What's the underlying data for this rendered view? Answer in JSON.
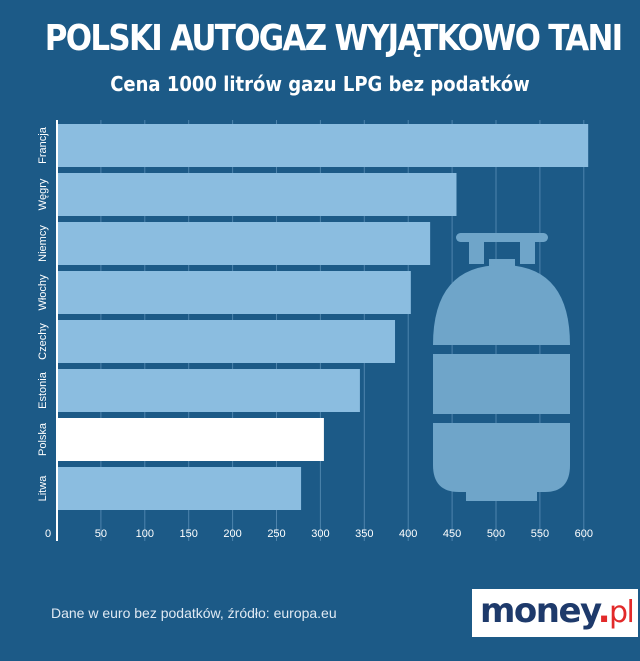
{
  "title": "POLSKI AUTOGAZ WYJĄTKOWO TANI",
  "subtitle": "Cena 1000 litrów gazu LPG bez podatków",
  "footnote": "Dane w euro bez podatków, źródło: europa.eu",
  "logo": {
    "main": "money",
    "dot": ".",
    "suffix": "pl"
  },
  "colors": {
    "background": "#1c5a87",
    "bar": "#8bbde0",
    "highlight_bar": "#ffffff",
    "grid": "#4e84ad",
    "gas_cylinder_icon": "#6fa5c9"
  },
  "icon": "gas-cylinder-icon",
  "chart_data": {
    "type": "bar",
    "orientation": "horizontal",
    "categories": [
      "Francja",
      "Węgry",
      "Niemcy",
      "Włochy",
      "Czechy",
      "Estonia",
      "Polska",
      "Litwa"
    ],
    "values": [
      605,
      455,
      425,
      403,
      385,
      345,
      304,
      278
    ],
    "highlight": "Polska",
    "xlim": [
      0,
      625
    ],
    "xticks": [
      0,
      50,
      100,
      150,
      200,
      250,
      300,
      350,
      400,
      450,
      500,
      550,
      600
    ],
    "grid": true,
    "xlabel": "",
    "ylabel": ""
  }
}
